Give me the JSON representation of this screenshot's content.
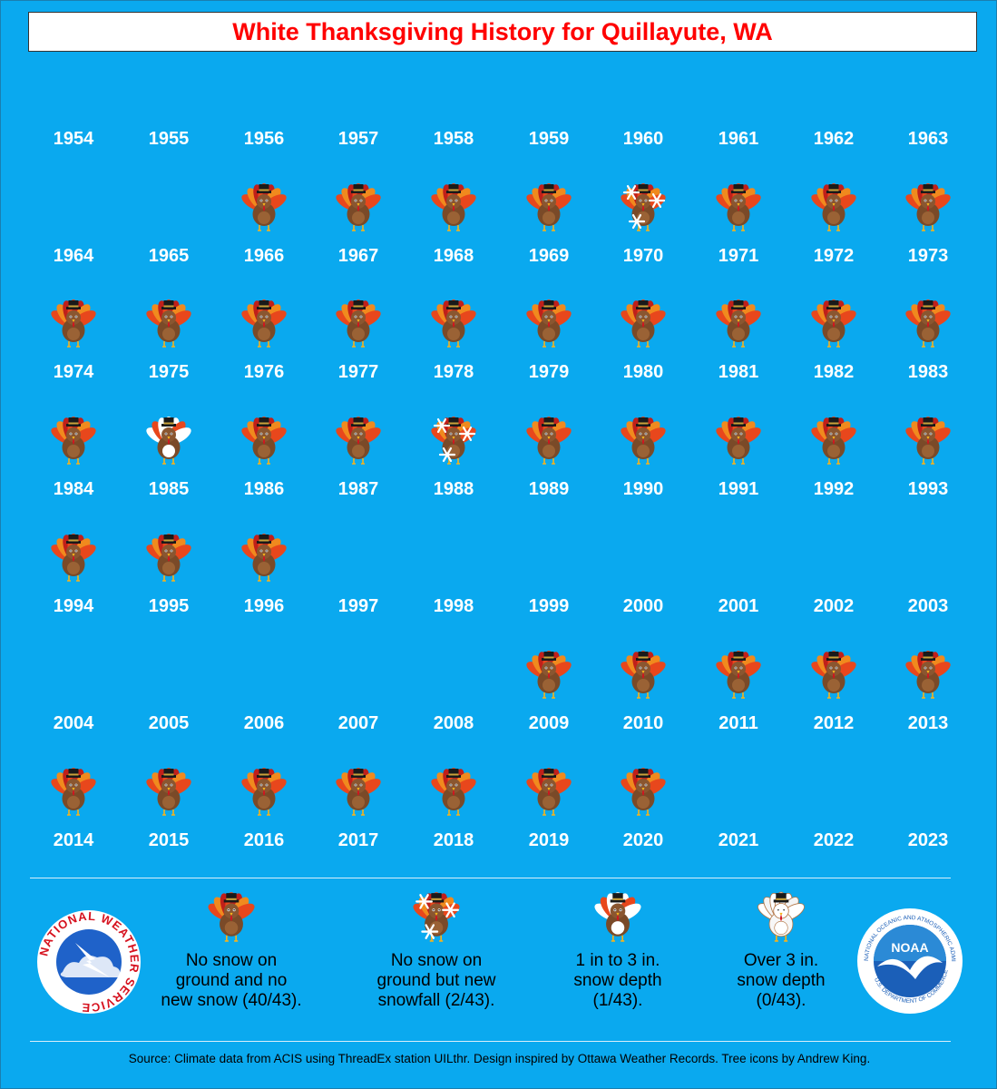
{
  "title": "White Thanksgiving History for Quillayute, WA",
  "colors": {
    "background": "#0aa9ef",
    "title_text": "#ff0000",
    "year_text": "#ffffff"
  },
  "icon_types": {
    "none": "no-snow-turkey-icon",
    "newsnow": "snowflake-turkey-icon",
    "light": "light-snow-turkey-icon",
    "heavy": "heavy-snow-turkey-icon"
  },
  "years": [
    {
      "year": "1954",
      "status": ""
    },
    {
      "year": "1955",
      "status": ""
    },
    {
      "year": "1956",
      "status": ""
    },
    {
      "year": "1957",
      "status": ""
    },
    {
      "year": "1958",
      "status": ""
    },
    {
      "year": "1959",
      "status": ""
    },
    {
      "year": "1960",
      "status": ""
    },
    {
      "year": "1961",
      "status": ""
    },
    {
      "year": "1962",
      "status": ""
    },
    {
      "year": "1963",
      "status": ""
    },
    {
      "year": "1964",
      "status": ""
    },
    {
      "year": "1965",
      "status": ""
    },
    {
      "year": "1966",
      "status": "none"
    },
    {
      "year": "1967",
      "status": "none"
    },
    {
      "year": "1968",
      "status": "none"
    },
    {
      "year": "1969",
      "status": "none"
    },
    {
      "year": "1970",
      "status": "newsnow"
    },
    {
      "year": "1971",
      "status": "none"
    },
    {
      "year": "1972",
      "status": "none"
    },
    {
      "year": "1973",
      "status": "none"
    },
    {
      "year": "1974",
      "status": "none"
    },
    {
      "year": "1975",
      "status": "none"
    },
    {
      "year": "1976",
      "status": "none"
    },
    {
      "year": "1977",
      "status": "none"
    },
    {
      "year": "1978",
      "status": "none"
    },
    {
      "year": "1979",
      "status": "none"
    },
    {
      "year": "1980",
      "status": "none"
    },
    {
      "year": "1981",
      "status": "none"
    },
    {
      "year": "1982",
      "status": "none"
    },
    {
      "year": "1983",
      "status": "none"
    },
    {
      "year": "1984",
      "status": "none"
    },
    {
      "year": "1985",
      "status": "light"
    },
    {
      "year": "1986",
      "status": "none"
    },
    {
      "year": "1987",
      "status": "none"
    },
    {
      "year": "1988",
      "status": "newsnow"
    },
    {
      "year": "1989",
      "status": "none"
    },
    {
      "year": "1990",
      "status": "none"
    },
    {
      "year": "1991",
      "status": "none"
    },
    {
      "year": "1992",
      "status": "none"
    },
    {
      "year": "1993",
      "status": "none"
    },
    {
      "year": "1994",
      "status": "none"
    },
    {
      "year": "1995",
      "status": "none"
    },
    {
      "year": "1996",
      "status": "none"
    },
    {
      "year": "1997",
      "status": ""
    },
    {
      "year": "1998",
      "status": ""
    },
    {
      "year": "1999",
      "status": ""
    },
    {
      "year": "2000",
      "status": ""
    },
    {
      "year": "2001",
      "status": ""
    },
    {
      "year": "2002",
      "status": ""
    },
    {
      "year": "2003",
      "status": ""
    },
    {
      "year": "2004",
      "status": ""
    },
    {
      "year": "2005",
      "status": ""
    },
    {
      "year": "2006",
      "status": ""
    },
    {
      "year": "2007",
      "status": ""
    },
    {
      "year": "2008",
      "status": ""
    },
    {
      "year": "2009",
      "status": "none"
    },
    {
      "year": "2010",
      "status": "none"
    },
    {
      "year": "2011",
      "status": "none"
    },
    {
      "year": "2012",
      "status": "none"
    },
    {
      "year": "2013",
      "status": "none"
    },
    {
      "year": "2014",
      "status": "none"
    },
    {
      "year": "2015",
      "status": "none"
    },
    {
      "year": "2016",
      "status": "none"
    },
    {
      "year": "2017",
      "status": "none"
    },
    {
      "year": "2018",
      "status": "none"
    },
    {
      "year": "2019",
      "status": "none"
    },
    {
      "year": "2020",
      "status": "none"
    },
    {
      "year": "2021",
      "status": ""
    },
    {
      "year": "2022",
      "status": ""
    },
    {
      "year": "2023",
      "status": ""
    }
  ],
  "legend": [
    {
      "type": "none",
      "lines": [
        "No snow on",
        "ground and no",
        "new snow (40/43)."
      ]
    },
    {
      "type": "newsnow",
      "lines": [
        "No snow on",
        "ground but new",
        "snowfall (2/43)."
      ]
    },
    {
      "type": "light",
      "lines": [
        "1 in to 3 in.",
        "snow depth",
        "(1/43)."
      ]
    },
    {
      "type": "heavy",
      "lines": [
        "Over 3 in.",
        "snow depth",
        "(0/43)."
      ]
    }
  ],
  "logos": {
    "nws": "NATIONAL WEATHER SERVICE",
    "noaa": "NOAA",
    "noaa_ring_top": "NATIONAL OCEANIC AND ATMOSPHERIC ADMINISTRATION",
    "noaa_ring_bottom": "U.S. DEPARTMENT OF COMMERCE"
  },
  "source": "Source: Climate data from ACIS using ThreadEx station UILthr. Design inspired by Ottawa Weather Records. Tree icons by Andrew King."
}
